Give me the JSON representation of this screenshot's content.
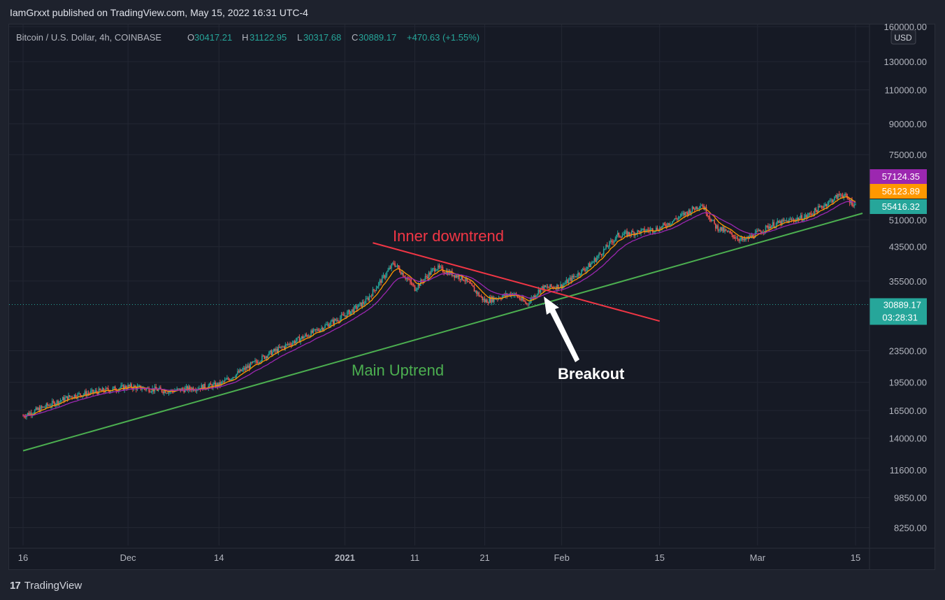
{
  "header": {
    "published_by": "IamGrxxt published on TradingView.com, May 15, 2022 16:31 UTC-4"
  },
  "footer": {
    "brand": "TradingView",
    "logo_mark": "17"
  },
  "symbol_bar": {
    "symbol": "Bitcoin / U.S. Dollar, 4h, COINBASE",
    "open_label": "O",
    "open": "30417.21",
    "high_label": "H",
    "high": "31122.95",
    "low_label": "L",
    "low": "30317.68",
    "close_label": "C",
    "close": "30889.17",
    "change": "+470.63 (+1.55%)"
  },
  "currency_badge": "USD",
  "price_axis": {
    "ticks": [
      "160000.00",
      "130000.00",
      "110000.00",
      "90000.00",
      "75000.00",
      "51000.00",
      "43500.00",
      "35500.00",
      "23500.00",
      "19500.00",
      "16500.00",
      "14000.00",
      "11600.00",
      "9850.00",
      "8250.00"
    ],
    "price_labels": [
      {
        "text": "57124.35",
        "color": "#9c27b0"
      },
      {
        "text": "56123.89",
        "color": "#ff9800"
      },
      {
        "text": "55416.32",
        "color": "#26a69a"
      }
    ],
    "current_price": "30889.17",
    "countdown": "03:28:31"
  },
  "time_axis": {
    "ticks": [
      "16",
      "Dec",
      "14",
      "2021",
      "11",
      "21",
      "Feb",
      "15",
      "Mar",
      "15"
    ]
  },
  "annotations": {
    "inner_downtrend": "Inner downtrend",
    "main_uptrend": "Main Uptrend",
    "breakout": "Breakout"
  },
  "colors": {
    "up": "#26a69a",
    "down": "#ef5350",
    "ema_fast": "#ff9800",
    "ema_slow": "#9c27b0",
    "uptrend_line": "#4caf50",
    "downtrend_line": "#f23645",
    "background": "#161a25"
  },
  "chart_data": {
    "type": "candlestick",
    "symbol": "BTCUSD",
    "interval": "4h",
    "y_scale": "log",
    "ylim": [
      7500,
      160000
    ],
    "x": [
      "2020-11-16",
      "2020-11-23",
      "2020-12-01",
      "2020-12-07",
      "2020-12-14",
      "2020-12-21",
      "2020-12-28",
      "2021-01-01",
      "2021-01-04",
      "2021-01-08",
      "2021-01-11",
      "2021-01-14",
      "2021-01-18",
      "2021-01-21",
      "2021-01-25",
      "2021-01-27",
      "2021-01-29",
      "2021-02-01",
      "2021-02-05",
      "2021-02-09",
      "2021-02-15",
      "2021-02-21",
      "2021-02-23",
      "2021-02-27",
      "2021-03-03",
      "2021-03-08",
      "2021-03-13",
      "2021-03-15"
    ],
    "close": [
      16000,
      18000,
      19000,
      18500,
      19200,
      23000,
      26500,
      29000,
      31500,
      39500,
      34000,
      38500,
      36000,
      31500,
      33000,
      31000,
      34000,
      34500,
      39000,
      46500,
      48500,
      56000,
      49000,
      45000,
      49500,
      52000,
      59500,
      55416
    ],
    "overlays": [
      {
        "name": "EMA fast",
        "last": 56123.89
      },
      {
        "name": "EMA slow",
        "last": 57124.35
      }
    ],
    "trendlines": [
      {
        "name": "Main Uptrend",
        "from": [
          "2020-11-16",
          13000
        ],
        "to": [
          "2021-03-16",
          53000
        ]
      },
      {
        "name": "Inner downtrend",
        "from": [
          "2021-01-05",
          44500
        ],
        "to": [
          "2021-02-15",
          28000
        ]
      }
    ],
    "current_price": 30889.17
  }
}
